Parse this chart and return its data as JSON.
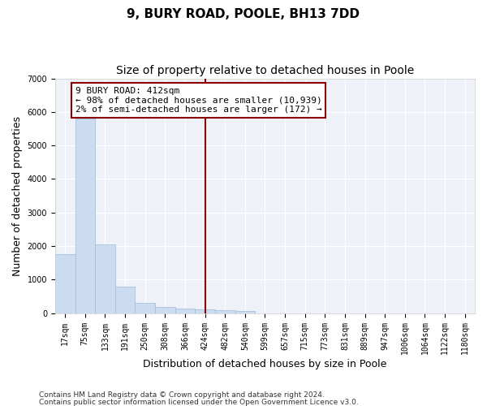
{
  "title": "9, BURY ROAD, POOLE, BH13 7DD",
  "subtitle": "Size of property relative to detached houses in Poole",
  "xlabel": "Distribution of detached houses by size in Poole",
  "ylabel": "Number of detached properties",
  "bin_labels": [
    "17sqm",
    "75sqm",
    "133sqm",
    "191sqm",
    "250sqm",
    "308sqm",
    "366sqm",
    "424sqm",
    "482sqm",
    "540sqm",
    "599sqm",
    "657sqm",
    "715sqm",
    "773sqm",
    "831sqm",
    "889sqm",
    "947sqm",
    "1006sqm",
    "1064sqm",
    "1122sqm",
    "1180sqm"
  ],
  "bar_values": [
    1750,
    5800,
    2050,
    800,
    300,
    190,
    130,
    100,
    90,
    60,
    0,
    0,
    0,
    0,
    0,
    0,
    0,
    0,
    0,
    0,
    0
  ],
  "bar_color": "#ccdcf0",
  "bar_edge_color": "#a0b8d8",
  "vline_x_index": 7,
  "vline_color": "#8b0000",
  "annotation_line1": "9 BURY ROAD: 412sqm",
  "annotation_line2": "← 98% of detached houses are smaller (10,939)",
  "annotation_line3": "2% of semi-detached houses are larger (172) →",
  "annotation_box_color": "#8b0000",
  "ylim": [
    0,
    7000
  ],
  "yticks": [
    0,
    1000,
    2000,
    3000,
    4000,
    5000,
    6000,
    7000
  ],
  "bg_color": "#eef2f8",
  "footer_line1": "Contains HM Land Registry data © Crown copyright and database right 2024.",
  "footer_line2": "Contains public sector information licensed under the Open Government Licence v3.0.",
  "grid_color": "#ffffff",
  "title_fontsize": 11,
  "subtitle_fontsize": 10,
  "axis_label_fontsize": 9,
  "tick_fontsize": 7,
  "annotation_fontsize": 8
}
